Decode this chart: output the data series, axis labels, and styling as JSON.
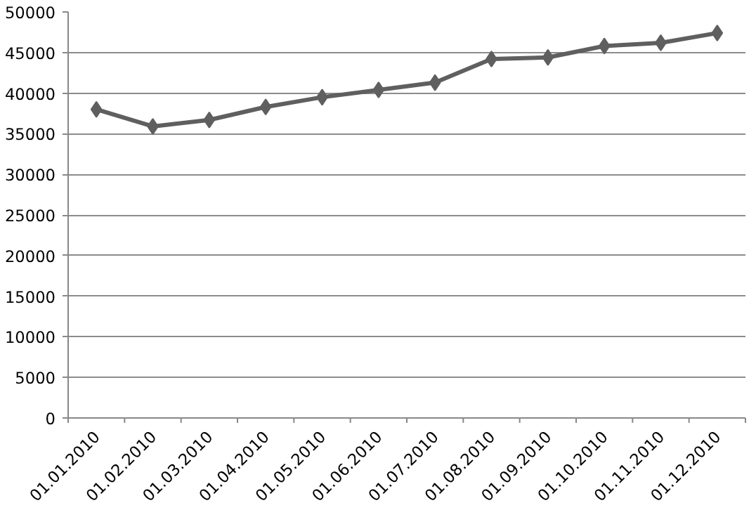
{
  "chart_data": {
    "type": "line",
    "categories": [
      "01.01.2010",
      "01.02.2010",
      "01.03.2010",
      "01.04.2010",
      "01.05.2010",
      "01.06.2010",
      "01.07.2010",
      "01.08.2010",
      "01.09.2010",
      "01.10.2010",
      "01.11.2010",
      "01.12.2010"
    ],
    "series": [
      {
        "color": "#5f5f5f",
        "values": [
          38000,
          35900,
          36700,
          38300,
          39500,
          40400,
          41300,
          44200,
          44400,
          45800,
          46200,
          47400
        ]
      }
    ],
    "ylim": [
      0,
      50000
    ],
    "yticks": [
      0,
      5000,
      10000,
      15000,
      20000,
      25000,
      30000,
      35000,
      40000,
      45000,
      50000
    ],
    "grid": "y",
    "marker": "diamond",
    "line_style": "solid"
  }
}
